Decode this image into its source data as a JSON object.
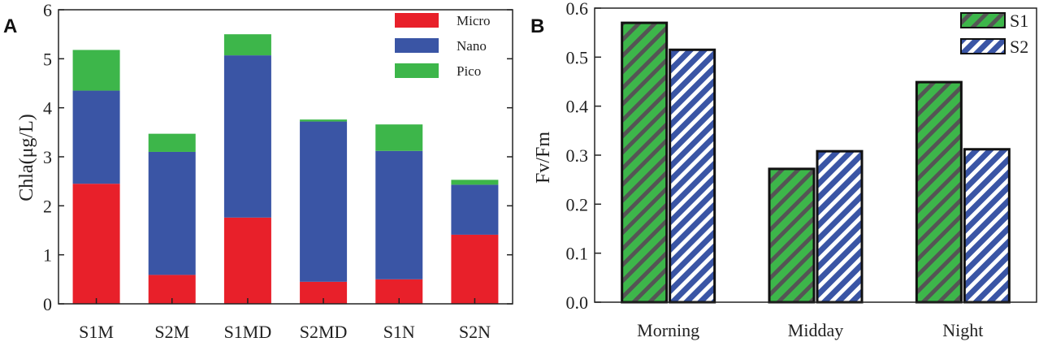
{
  "chart_data": [
    {
      "panel": "A",
      "type": "bar",
      "stacked": true,
      "ylabel": "Chla(μg/L)",
      "xlabel": "",
      "ylim": [
        0,
        6
      ],
      "yticks": [
        0,
        1,
        2,
        3,
        4,
        5,
        6
      ],
      "categories": [
        "S1M",
        "S2M",
        "S1MD",
        "S2MD",
        "S1N",
        "S2N"
      ],
      "series": [
        {
          "name": "Micro",
          "color": "#e8202a",
          "values": [
            2.45,
            0.59,
            1.76,
            0.45,
            0.5,
            1.41
          ]
        },
        {
          "name": "Nano",
          "color": "#3a55a5",
          "values": [
            1.9,
            2.51,
            3.31,
            3.27,
            2.62,
            1.02
          ]
        },
        {
          "name": "Pico",
          "color": "#3db64a",
          "values": [
            0.83,
            0.37,
            0.43,
            0.04,
            0.54,
            0.1
          ]
        }
      ],
      "legend": "top-right",
      "grid": false
    },
    {
      "panel": "B",
      "type": "bar",
      "ylabel": "Fv/Fm",
      "xlabel": "",
      "ylim": [
        0,
        0.6
      ],
      "yticks": [
        "0.0",
        "0.1",
        "0.2",
        "0.3",
        "0.4",
        "0.5",
        "0.6"
      ],
      "categories": [
        "Morning",
        "Midday",
        "Night"
      ],
      "series": [
        {
          "name": "S1",
          "color": "#3db64a",
          "stripe": "#555555",
          "values": [
            0.57,
            0.272,
            0.449
          ]
        },
        {
          "name": "S2",
          "color": "#3a55a5",
          "stripe": "#ffffff",
          "values": [
            0.515,
            0.308,
            0.312
          ]
        }
      ],
      "legend": "top-right",
      "grid": false
    }
  ]
}
